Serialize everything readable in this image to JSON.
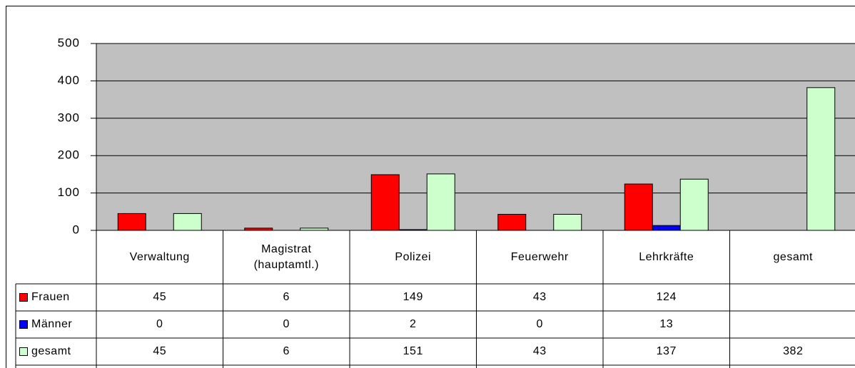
{
  "chart_data": {
    "type": "bar",
    "categories": [
      "Verwaltung",
      "Magistrat\n(hauptamtl.)",
      "Polizei",
      "Feuerwehr",
      "Lehrkräfte",
      "gesamt"
    ],
    "series": [
      {
        "name": "Frauen",
        "color": "#ff0000",
        "values": [
          45,
          6,
          149,
          43,
          124,
          null
        ]
      },
      {
        "name": "Männer",
        "color": "#0000ff",
        "values": [
          0,
          0,
          2,
          0,
          13,
          null
        ]
      },
      {
        "name": "gesamt",
        "color": "#ccffcc",
        "values": [
          45,
          6,
          151,
          43,
          137,
          382
        ]
      }
    ],
    "ylim": [
      0,
      500
    ],
    "yticks": [
      0,
      100,
      200,
      300,
      400,
      500
    ],
    "grid": true,
    "data_table": true
  }
}
